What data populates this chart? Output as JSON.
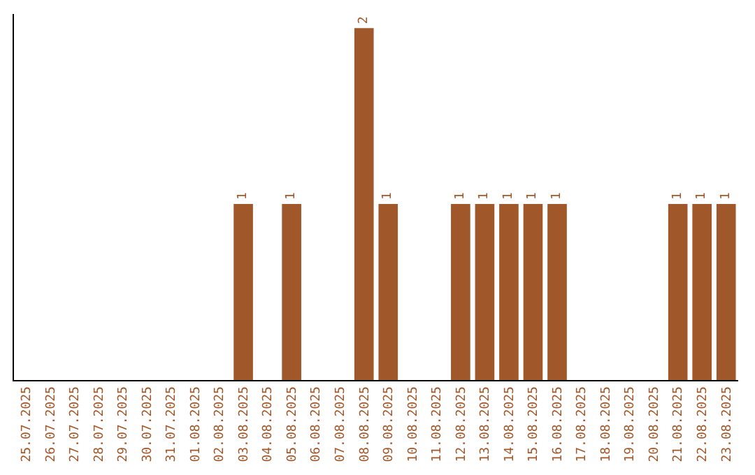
{
  "chart_data": {
    "type": "bar",
    "categories": [
      "25.07.2025",
      "26.07.2025",
      "27.07.2025",
      "28.07.2025",
      "29.07.2025",
      "30.07.2025",
      "31.07.2025",
      "01.08.2025",
      "02.08.2025",
      "03.08.2025",
      "04.08.2025",
      "05.08.2025",
      "06.08.2025",
      "07.08.2025",
      "08.08.2025",
      "09.08.2025",
      "10.08.2025",
      "11.08.2025",
      "12.08.2025",
      "13.08.2025",
      "14.08.2025",
      "15.08.2025",
      "16.08.2025",
      "17.08.2025",
      "18.08.2025",
      "19.08.2025",
      "20.08.2025",
      "21.08.2025",
      "22.08.2025",
      "23.08.2025"
    ],
    "values": [
      0,
      0,
      0,
      0,
      0,
      0,
      0,
      0,
      0,
      1,
      0,
      1,
      0,
      0,
      2,
      1,
      0,
      0,
      1,
      1,
      1,
      1,
      1,
      0,
      0,
      0,
      0,
      1,
      1,
      1
    ],
    "value_labels": [
      null,
      null,
      null,
      null,
      null,
      null,
      null,
      null,
      null,
      "1",
      null,
      "1",
      null,
      null,
      "2",
      "1",
      null,
      null,
      "1",
      "1",
      "1",
      "1",
      "1",
      null,
      null,
      null,
      null,
      "1",
      "1",
      "1"
    ],
    "color": "#a0572a",
    "tick_labels": "x"
  }
}
